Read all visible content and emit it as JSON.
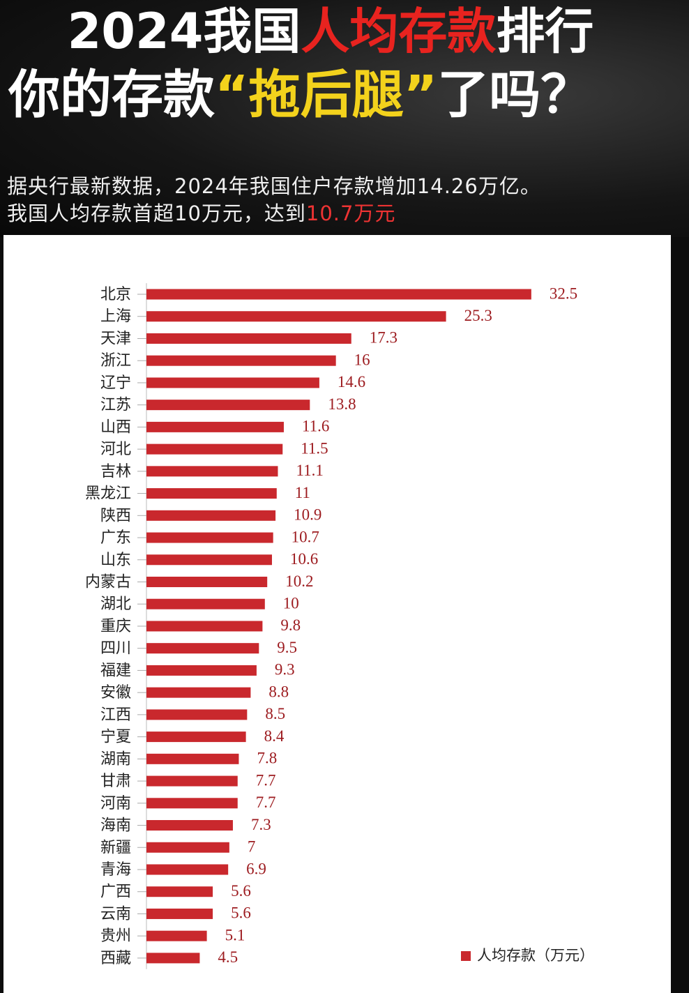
{
  "header": {
    "title_line1": [
      "2024我国",
      "人均存款",
      "排行"
    ],
    "title_line2": [
      "你的存款",
      "“拖后腿”",
      "了吗？"
    ],
    "subtitle_line1": "据央行最新数据，2024年我国住户存款增加14.26万亿。",
    "subtitle_line2": [
      "我国人均存款首超10万元，达到",
      "10.7万元"
    ]
  },
  "chart_data": {
    "type": "bar",
    "orientation": "horizontal",
    "categories": [
      "北京",
      "上海",
      "天津",
      "浙江",
      "辽宁",
      "江苏",
      "山西",
      "河北",
      "吉林",
      "黑龙江",
      "陕西",
      "广东",
      "山东",
      "内蒙古",
      "湖北",
      "重庆",
      "四川",
      "福建",
      "安徽",
      "江西",
      "宁夏",
      "湖南",
      "甘肃",
      "河南",
      "海南",
      "新疆",
      "青海",
      "广西",
      "云南",
      "贵州",
      "西藏"
    ],
    "series": [
      {
        "name": "人均存款（万元）",
        "color": "#c9282d",
        "values": [
          32.5,
          25.3,
          17.3,
          16,
          14.6,
          13.8,
          11.6,
          11.5,
          11.1,
          11,
          10.9,
          10.7,
          10.6,
          10.2,
          10,
          9.8,
          9.5,
          9.3,
          8.8,
          8.5,
          8.4,
          7.8,
          7.7,
          7.7,
          7.3,
          7,
          6.9,
          5.6,
          5.6,
          5.1,
          4.5
        ]
      }
    ],
    "legend": "lower right"
  }
}
